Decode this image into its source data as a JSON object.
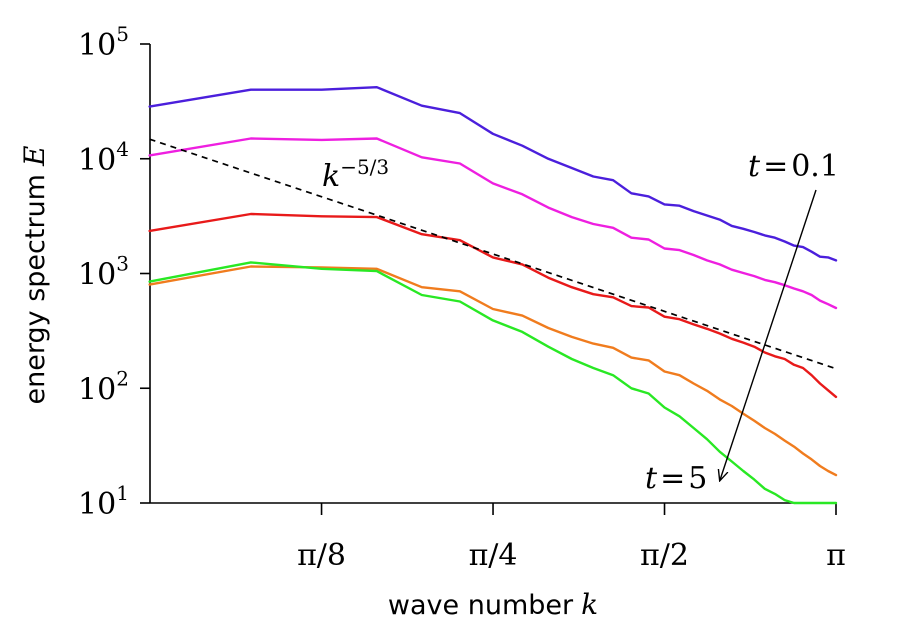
{
  "chart_data": {
    "type": "line",
    "title": "",
    "xlabel": "wave number",
    "xlabel_var": "k",
    "ylabel": "energy spectrum",
    "ylabel_var": "E",
    "y_scale": "log",
    "x_scale": "log",
    "xlim": [
      0.1963,
      3.1416
    ],
    "ylim": [
      10,
      100000
    ],
    "grid": false,
    "legend": "none",
    "y_ticks": [
      {
        "value": 10,
        "base": "10",
        "exp": "1"
      },
      {
        "value": 100,
        "base": "10",
        "exp": "2"
      },
      {
        "value": 1000,
        "base": "10",
        "exp": "3"
      },
      {
        "value": 10000,
        "base": "10",
        "exp": "4"
      },
      {
        "value": 100000,
        "base": "10",
        "exp": "5"
      }
    ],
    "x_ticks": [
      {
        "value": 0.3927,
        "label": "π/8"
      },
      {
        "value": 0.7854,
        "label": "π/4"
      },
      {
        "value": 1.5708,
        "label": "π/2"
      },
      {
        "value": 3.1416,
        "label": "π"
      }
    ],
    "x": [
      0.196,
      0.295,
      0.393,
      0.491,
      0.589,
      0.687,
      0.785,
      0.884,
      0.982,
      1.08,
      1.178,
      1.276,
      1.374,
      1.473,
      1.571,
      1.669,
      1.767,
      1.865,
      1.963,
      2.062,
      2.16,
      2.258,
      2.356,
      2.454,
      2.553,
      2.651,
      2.749,
      2.847,
      2.945,
      3.043,
      3.142
    ],
    "series": [
      {
        "color": "#4b1fdc",
        "values": [
          28500,
          40000,
          40000,
          42000,
          29000,
          25000,
          16500,
          13000,
          10000,
          8300,
          7000,
          6500,
          5000,
          4700,
          4000,
          3900,
          3500,
          3200,
          2950,
          2600,
          2450,
          2300,
          2150,
          2050,
          1900,
          1750,
          1700,
          1550,
          1400,
          1380,
          1300
        ]
      },
      {
        "color": "#ee1fe0",
        "values": [
          10700,
          15000,
          14600,
          15000,
          10300,
          9100,
          6100,
          4900,
          3750,
          3100,
          2700,
          2500,
          2050,
          1980,
          1650,
          1600,
          1450,
          1300,
          1200,
          1080,
          1010,
          950,
          880,
          840,
          790,
          740,
          700,
          650,
          580,
          540,
          500
        ]
      },
      {
        "color": "#e81a1a",
        "values": [
          2350,
          3300,
          3150,
          3100,
          2200,
          1950,
          1380,
          1200,
          920,
          760,
          660,
          620,
          520,
          505,
          420,
          400,
          360,
          330,
          300,
          270,
          250,
          230,
          205,
          190,
          180,
          160,
          150,
          130,
          110,
          96,
          84
        ]
      },
      {
        "color": "#f07c1e",
        "values": [
          800,
          1150,
          1130,
          1100,
          760,
          700,
          490,
          430,
          335,
          280,
          245,
          225,
          185,
          175,
          140,
          130,
          110,
          95,
          80,
          70,
          60,
          52,
          45,
          40,
          35,
          31,
          27,
          24,
          21,
          19,
          17.5
        ]
      },
      {
        "color": "#29e824",
        "values": [
          850,
          1250,
          1100,
          1050,
          650,
          570,
          390,
          310,
          230,
          180,
          150,
          130,
          100,
          90,
          68,
          57,
          45,
          36,
          28,
          23,
          19,
          16,
          13.3,
          12,
          10.6,
          10,
          10,
          10,
          10,
          10,
          10
        ]
      }
    ],
    "reference_line": {
      "label_base": "k",
      "label_exp": "−5/3",
      "exponent": -1.6667,
      "x": [
        0.196,
        3.142
      ],
      "y": [
        14800,
        148
      ]
    },
    "annotations": [
      {
        "var": "t",
        "eq": "=",
        "value": "0.1"
      },
      {
        "var": "t",
        "eq": "=",
        "value": "5"
      }
    ]
  }
}
